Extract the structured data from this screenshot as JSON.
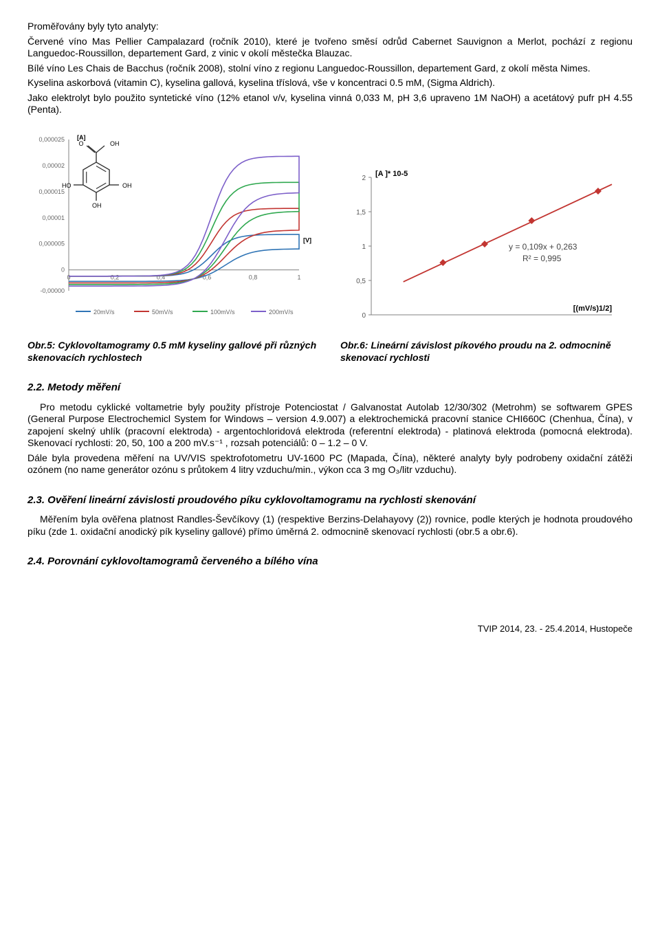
{
  "intro": {
    "p1": "Proměřovány byly tyto analyty:",
    "p2": "Červené víno Mas Pellier Campalazard (ročník 2010), které je tvořeno směsí odrůd Cabernet Sauvignon a Merlot, pochází z regionu Languedoc-Roussillon, departement Gard, z vinic v okolí městečka Blauzac.",
    "p3": "Bílé víno Les Chais de Bacchus (ročník 2008), stolní víno z regionu Languedoc-Roussillon, departement Gard, z okolí města Nimes.",
    "p4": "Kyselina askorbová (vitamin C), kyselina gallová, kyselina tříslová, vše v koncentraci 0.5 mM, (Sigma Aldrich).",
    "p5": "Jako elektrolyt bylo použito syntetické víno (12% etanol v/v, kyselina vinná 0,033 M, pH 3,6 upraveno 1M NaOH) a acetátový pufr pH 4.55 (Penta)."
  },
  "fig5": {
    "caption": "Obr.5:  Cyklovoltamogramy 0.5 mM kyseliny gallové při různých skenovacích rychlostech",
    "y_label_unit": "[A]",
    "x_label_unit": "[V]",
    "y_ticks": [
      "0,000025",
      "0,00002",
      "0,000015",
      "0,00001",
      "0,000005",
      "0",
      "-0,00000"
    ],
    "x_ticks": [
      "0",
      "0,2",
      "0,4",
      "0,6",
      "0,8",
      "1"
    ],
    "series": [
      {
        "name": "20mV/s",
        "color": "#2f74b5"
      },
      {
        "name": "50mV/s",
        "color": "#c23531"
      },
      {
        "name": "100mV/s",
        "color": "#2fa84f"
      },
      {
        "name": "200mV/s",
        "color": "#7c5fc9"
      }
    ],
    "molecule_labels": [
      "O",
      "OH",
      "HO",
      "OH",
      "OH"
    ],
    "background_color": "#ffffff",
    "axis_color": "#808080",
    "tick_fontsize": 9,
    "legend_fontsize": 9
  },
  "fig6": {
    "caption": "Obr.6:  Lineární závislost píkového proudu na 2. odmocnině skenovací rychlosti",
    "y_label": "[A ]* 10-5",
    "x_label": "[(mV/s)1/2]",
    "y_ticks": [
      "2",
      "1,5",
      "1",
      "0,5",
      "0"
    ],
    "points_x": [
      4.47,
      7.07,
      10.0,
      14.14
    ],
    "points_y": [
      0.76,
      1.03,
      1.37,
      1.8
    ],
    "fit_eq": "y = 0,109x + 0,263",
    "fit_r2": "R² = 0,995",
    "line_color": "#c23531",
    "marker_color": "#c23531",
    "axis_color": "#808080",
    "background_color": "#ffffff",
    "tick_fontsize": 10,
    "label_fontsize": 11
  },
  "sec22": {
    "title": "2.2.    Metody měření",
    "p1": "Pro metodu cyklické voltametrie byly použity přístroje Potenciostat / Galvanostat Autolab 12/30/302 (Metrohm) se softwarem GPES (General Purpose Electrochemicl System for Windows – version 4.9.007) a elektrochemická pracovní stanice CHI660C (Chenhua, Čína), v zapojení skelný uhlík (pracovní elektroda) - argentochloridová elektroda (referentní elektroda) - platinová elektroda (pomocná elektroda).  Skenovací rychlosti:  20, 50, 100 a 200 mV.s⁻¹ , rozsah potenciálů:  0 – 1.2 – 0 V.",
    "p2": "Dále byla provedena měření na UV/VIS spektrofotometru UV-1600 PC (Mapada, Čína), některé analyty byly podrobeny oxidační zátěži ozónem (no name generátor ozónu s průtokem 4 litry vzduchu/min., výkon cca 3 mg O₃/litr vzduchu)."
  },
  "sec23": {
    "title": "2.3.    Ověření lineární závislosti proudového píku cyklovoltamogramu na rychlosti skenování",
    "p1": "Měřením byla ověřena platnost Randles-Ševčíkovy (1) (respektive Berzins-Delahayovy (2)) rovnice, podle kterých je hodnota proudového píku (zde 1. oxidační anodický pík kyseliny gallové) přímo úměrná 2. odmocnině skenovací rychlosti (obr.5 a obr.6)."
  },
  "sec24": {
    "title": "2.4.    Porovnání cyklovoltamogramů červeného a bílého vína"
  },
  "footer": "TVIP 2014, 23. - 25.4.2014, Hustopeče"
}
